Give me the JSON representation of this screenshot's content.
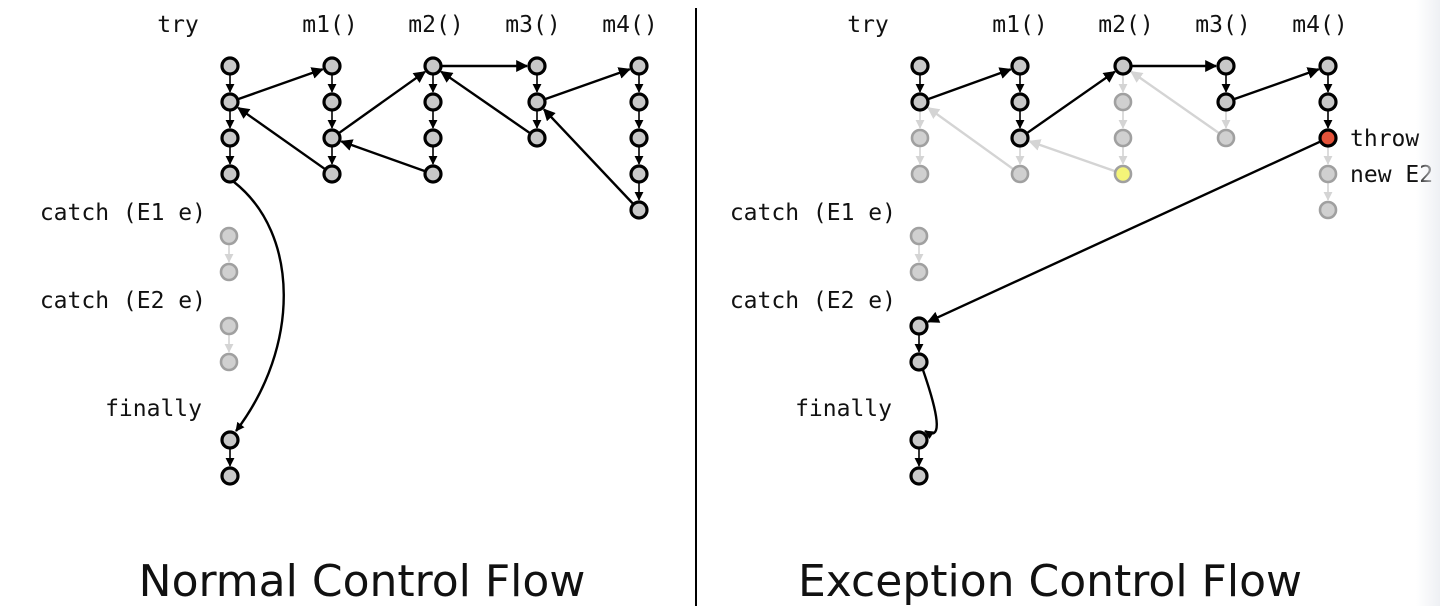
{
  "colors": {
    "node_active_fill": "#c8c8c8",
    "node_active_stroke": "#000000",
    "node_faded_fill": "#d0d0d0",
    "node_faded_stroke": "#a0a0a0",
    "throw_fill": "#e4533a",
    "new_fill": "#f4f478",
    "edge_active": "#000000",
    "edge_faded": "#d4d4d4",
    "divider": "#000000"
  },
  "panels": [
    {
      "id": "normal",
      "title": "Normal Control Flow",
      "labels": {
        "try": "try",
        "m1": "m1()",
        "m2": "m2()",
        "m3": "m3()",
        "m4": "m4()",
        "catch1": "catch (E1 e)",
        "catch2": "catch (E2 e)",
        "finally": "finally"
      },
      "nodes": [
        {
          "col": "try",
          "row": 0,
          "state": "active"
        },
        {
          "col": "try",
          "row": 1,
          "state": "active"
        },
        {
          "col": "try",
          "row": 2,
          "state": "active"
        },
        {
          "col": "try",
          "row": 3,
          "state": "active"
        },
        {
          "col": "m1",
          "row": 0,
          "state": "active"
        },
        {
          "col": "m1",
          "row": 1,
          "state": "active"
        },
        {
          "col": "m1",
          "row": 2,
          "state": "active"
        },
        {
          "col": "m1",
          "row": 3,
          "state": "active"
        },
        {
          "col": "m2",
          "row": 0,
          "state": "active"
        },
        {
          "col": "m2",
          "row": 1,
          "state": "active"
        },
        {
          "col": "m2",
          "row": 2,
          "state": "active"
        },
        {
          "col": "m2",
          "row": 3,
          "state": "active"
        },
        {
          "col": "m3",
          "row": 0,
          "state": "active"
        },
        {
          "col": "m3",
          "row": 1,
          "state": "active"
        },
        {
          "col": "m3",
          "row": 2,
          "state": "active"
        },
        {
          "col": "m4",
          "row": 0,
          "state": "active"
        },
        {
          "col": "m4",
          "row": 1,
          "state": "active"
        },
        {
          "col": "m4",
          "row": 2,
          "state": "active"
        },
        {
          "col": "m4",
          "row": 3,
          "state": "active"
        },
        {
          "col": "m4",
          "row": 4,
          "state": "active"
        },
        {
          "col": "catch1",
          "row": 0,
          "state": "faded"
        },
        {
          "col": "catch1",
          "row": 1,
          "state": "faded"
        },
        {
          "col": "catch2",
          "row": 0,
          "state": "faded"
        },
        {
          "col": "catch2",
          "row": 1,
          "state": "faded"
        },
        {
          "col": "finally",
          "row": 0,
          "state": "active"
        },
        {
          "col": "finally",
          "row": 1,
          "state": "active"
        }
      ],
      "edges": [
        {
          "from": [
            "try",
            0
          ],
          "to": [
            "try",
            1
          ],
          "state": "active"
        },
        {
          "from": [
            "try",
            1
          ],
          "to": [
            "try",
            2
          ],
          "state": "active"
        },
        {
          "from": [
            "try",
            2
          ],
          "to": [
            "try",
            3
          ],
          "state": "active"
        },
        {
          "from": [
            "m1",
            0
          ],
          "to": [
            "m1",
            1
          ],
          "state": "active"
        },
        {
          "from": [
            "m1",
            1
          ],
          "to": [
            "m1",
            2
          ],
          "state": "active"
        },
        {
          "from": [
            "m1",
            2
          ],
          "to": [
            "m1",
            3
          ],
          "state": "active"
        },
        {
          "from": [
            "m2",
            0
          ],
          "to": [
            "m2",
            1
          ],
          "state": "active"
        },
        {
          "from": [
            "m2",
            1
          ],
          "to": [
            "m2",
            2
          ],
          "state": "active"
        },
        {
          "from": [
            "m2",
            2
          ],
          "to": [
            "m2",
            3
          ],
          "state": "active"
        },
        {
          "from": [
            "m3",
            0
          ],
          "to": [
            "m3",
            1
          ],
          "state": "active"
        },
        {
          "from": [
            "m3",
            1
          ],
          "to": [
            "m3",
            2
          ],
          "state": "active"
        },
        {
          "from": [
            "m4",
            0
          ],
          "to": [
            "m4",
            1
          ],
          "state": "active"
        },
        {
          "from": [
            "m4",
            1
          ],
          "to": [
            "m4",
            2
          ],
          "state": "active"
        },
        {
          "from": [
            "m4",
            2
          ],
          "to": [
            "m4",
            3
          ],
          "state": "active"
        },
        {
          "from": [
            "m4",
            3
          ],
          "to": [
            "m4",
            4
          ],
          "state": "active"
        },
        {
          "from": [
            "catch1",
            0
          ],
          "to": [
            "catch1",
            1
          ],
          "state": "faded"
        },
        {
          "from": [
            "catch2",
            0
          ],
          "to": [
            "catch2",
            1
          ],
          "state": "faded"
        },
        {
          "from": [
            "finally",
            0
          ],
          "to": [
            "finally",
            1
          ],
          "state": "active"
        },
        {
          "from": [
            "try",
            1
          ],
          "to": [
            "m1",
            0
          ],
          "state": "active"
        },
        {
          "from": [
            "m1",
            3
          ],
          "to": [
            "try",
            1
          ],
          "state": "active"
        },
        {
          "from": [
            "m1",
            2
          ],
          "to": [
            "m2",
            0
          ],
          "state": "active"
        },
        {
          "from": [
            "m2",
            3
          ],
          "to": [
            "m1",
            2
          ],
          "state": "active"
        },
        {
          "from": [
            "m2",
            0
          ],
          "to": [
            "m3",
            0
          ],
          "state": "active"
        },
        {
          "from": [
            "m3",
            2
          ],
          "to": [
            "m2",
            0
          ],
          "state": "active"
        },
        {
          "from": [
            "m3",
            1
          ],
          "to": [
            "m4",
            0
          ],
          "state": "active"
        },
        {
          "from": [
            "m4",
            4
          ],
          "to": [
            "m3",
            1
          ],
          "state": "active"
        },
        {
          "from": [
            "try",
            3
          ],
          "to": [
            "finally",
            0
          ],
          "state": "active",
          "curve": "right-bulge"
        }
      ],
      "annotations": []
    },
    {
      "id": "exception",
      "title": "Exception Control Flow",
      "labels": {
        "try": "try",
        "m1": "m1()",
        "m2": "m2()",
        "m3": "m3()",
        "m4": "m4()",
        "catch1": "catch (E1 e)",
        "catch2": "catch (E2 e)",
        "finally": "finally"
      },
      "nodes": [
        {
          "col": "try",
          "row": 0,
          "state": "active"
        },
        {
          "col": "try",
          "row": 1,
          "state": "active"
        },
        {
          "col": "try",
          "row": 2,
          "state": "faded"
        },
        {
          "col": "try",
          "row": 3,
          "state": "faded"
        },
        {
          "col": "m1",
          "row": 0,
          "state": "active"
        },
        {
          "col": "m1",
          "row": 1,
          "state": "active"
        },
        {
          "col": "m1",
          "row": 2,
          "state": "active"
        },
        {
          "col": "m1",
          "row": 3,
          "state": "faded"
        },
        {
          "col": "m2",
          "row": 0,
          "state": "active"
        },
        {
          "col": "m2",
          "row": 1,
          "state": "faded"
        },
        {
          "col": "m2",
          "row": 2,
          "state": "faded"
        },
        {
          "col": "m2",
          "row": 3,
          "state": "new"
        },
        {
          "col": "m3",
          "row": 0,
          "state": "active"
        },
        {
          "col": "m3",
          "row": 1,
          "state": "active"
        },
        {
          "col": "m3",
          "row": 2,
          "state": "faded"
        },
        {
          "col": "m4",
          "row": 0,
          "state": "active"
        },
        {
          "col": "m4",
          "row": 1,
          "state": "active"
        },
        {
          "col": "m4",
          "row": 2,
          "state": "throw"
        },
        {
          "col": "m4",
          "row": 3,
          "state": "faded"
        },
        {
          "col": "m4",
          "row": 4,
          "state": "faded"
        },
        {
          "col": "catch1",
          "row": 0,
          "state": "faded"
        },
        {
          "col": "catch1",
          "row": 1,
          "state": "faded"
        },
        {
          "col": "catch2",
          "row": 0,
          "state": "active"
        },
        {
          "col": "catch2",
          "row": 1,
          "state": "active"
        },
        {
          "col": "finally",
          "row": 0,
          "state": "active"
        },
        {
          "col": "finally",
          "row": 1,
          "state": "active"
        }
      ],
      "edges": [
        {
          "from": [
            "try",
            0
          ],
          "to": [
            "try",
            1
          ],
          "state": "active"
        },
        {
          "from": [
            "try",
            1
          ],
          "to": [
            "try",
            2
          ],
          "state": "faded"
        },
        {
          "from": [
            "try",
            2
          ],
          "to": [
            "try",
            3
          ],
          "state": "faded"
        },
        {
          "from": [
            "m1",
            0
          ],
          "to": [
            "m1",
            1
          ],
          "state": "active"
        },
        {
          "from": [
            "m1",
            1
          ],
          "to": [
            "m1",
            2
          ],
          "state": "active"
        },
        {
          "from": [
            "m1",
            2
          ],
          "to": [
            "m1",
            3
          ],
          "state": "faded"
        },
        {
          "from": [
            "m2",
            0
          ],
          "to": [
            "m2",
            1
          ],
          "state": "faded"
        },
        {
          "from": [
            "m2",
            1
          ],
          "to": [
            "m2",
            2
          ],
          "state": "faded"
        },
        {
          "from": [
            "m2",
            2
          ],
          "to": [
            "m2",
            3
          ],
          "state": "faded"
        },
        {
          "from": [
            "m3",
            0
          ],
          "to": [
            "m3",
            1
          ],
          "state": "active"
        },
        {
          "from": [
            "m3",
            1
          ],
          "to": [
            "m3",
            2
          ],
          "state": "faded"
        },
        {
          "from": [
            "m4",
            0
          ],
          "to": [
            "m4",
            1
          ],
          "state": "active"
        },
        {
          "from": [
            "m4",
            1
          ],
          "to": [
            "m4",
            2
          ],
          "state": "active"
        },
        {
          "from": [
            "m4",
            2
          ],
          "to": [
            "m4",
            3
          ],
          "state": "faded"
        },
        {
          "from": [
            "m4",
            3
          ],
          "to": [
            "m4",
            4
          ],
          "state": "faded"
        },
        {
          "from": [
            "catch1",
            0
          ],
          "to": [
            "catch1",
            1
          ],
          "state": "faded"
        },
        {
          "from": [
            "catch2",
            0
          ],
          "to": [
            "catch2",
            1
          ],
          "state": "active"
        },
        {
          "from": [
            "finally",
            0
          ],
          "to": [
            "finally",
            1
          ],
          "state": "active"
        },
        {
          "from": [
            "try",
            1
          ],
          "to": [
            "m1",
            0
          ],
          "state": "active"
        },
        {
          "from": [
            "m1",
            3
          ],
          "to": [
            "try",
            1
          ],
          "state": "faded"
        },
        {
          "from": [
            "m1",
            2
          ],
          "to": [
            "m2",
            0
          ],
          "state": "active"
        },
        {
          "from": [
            "m2",
            3
          ],
          "to": [
            "m1",
            2
          ],
          "state": "faded"
        },
        {
          "from": [
            "m2",
            0
          ],
          "to": [
            "m3",
            0
          ],
          "state": "active"
        },
        {
          "from": [
            "m3",
            2
          ],
          "to": [
            "m2",
            0
          ],
          "state": "faded"
        },
        {
          "from": [
            "m3",
            1
          ],
          "to": [
            "m4",
            0
          ],
          "state": "active"
        },
        {
          "from": [
            "m4",
            2
          ],
          "to": [
            "catch2",
            0
          ],
          "state": "active"
        },
        {
          "from": [
            "catch2",
            1
          ],
          "to": [
            "finally",
            0
          ],
          "state": "active",
          "curve": "small-bulge"
        }
      ],
      "annotations": [
        {
          "target": [
            "m4",
            2
          ],
          "text": "throw"
        },
        {
          "target": [
            "m4",
            3
          ],
          "text": "new E2"
        }
      ]
    }
  ]
}
